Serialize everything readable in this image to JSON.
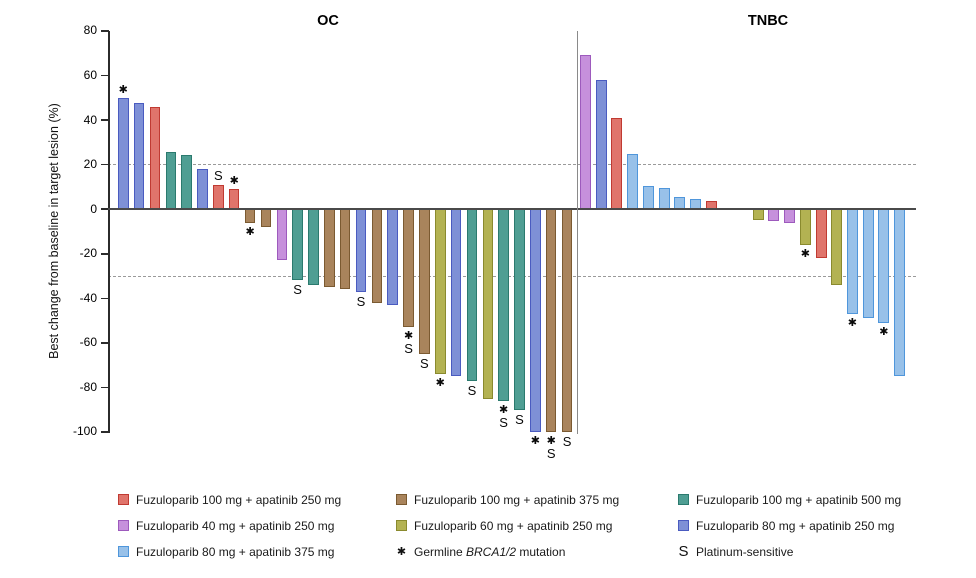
{
  "chart_data": {
    "type": "bar",
    "subtype": "waterfall",
    "ylabel": "Best change from baseline in target lesion (%)",
    "ylim": [
      -100,
      80
    ],
    "yticks": [
      80,
      60,
      40,
      20,
      0,
      -20,
      -40,
      -60,
      -80,
      -100
    ],
    "reference_lines": [
      20,
      -30
    ],
    "grid": "off",
    "legend_position": "bottom",
    "colors": {
      "red": {
        "fill": "#E0746B",
        "border": "#C03A32"
      },
      "brown": {
        "fill": "#A9845C",
        "border": "#7B5A31"
      },
      "teal": {
        "fill": "#4F9E93",
        "border": "#2B7A6E"
      },
      "orchid": {
        "fill": "#C690DC",
        "border": "#9D5ABD"
      },
      "yellow": {
        "fill": "#B3B252",
        "border": "#8A8A2E"
      },
      "blueviolet": {
        "fill": "#7E90D6",
        "border": "#4A5BC0"
      },
      "lightblue": {
        "fill": "#98C1E9",
        "border": "#4F96DB"
      }
    },
    "mark_meanings": {
      "*": "Germline BRCA1/2 mutation",
      "S": "Platinum-sensitive"
    },
    "panels": [
      {
        "name": "OC",
        "bars": [
          {
            "value": 50,
            "color": "blueviolet",
            "marks": "*"
          },
          {
            "value": 47.5,
            "color": "blueviolet",
            "marks": ""
          },
          {
            "value": 46,
            "color": "red",
            "marks": ""
          },
          {
            "value": 25.5,
            "color": "teal",
            "marks": ""
          },
          {
            "value": 24.5,
            "color": "teal",
            "marks": ""
          },
          {
            "value": 18,
            "color": "blueviolet",
            "marks": ""
          },
          {
            "value": 11,
            "color": "red",
            "marks": "S"
          },
          {
            "value": 9,
            "color": "red",
            "marks": "*"
          },
          {
            "value": -6,
            "color": "brown",
            "marks": "*"
          },
          {
            "value": -8,
            "color": "brown",
            "marks": ""
          },
          {
            "value": -23,
            "color": "orchid",
            "marks": ""
          },
          {
            "value": -32,
            "color": "teal",
            "marks": "S"
          },
          {
            "value": -34,
            "color": "teal",
            "marks": ""
          },
          {
            "value": -35,
            "color": "brown",
            "marks": ""
          },
          {
            "value": -36,
            "color": "brown",
            "marks": ""
          },
          {
            "value": -37,
            "color": "blueviolet",
            "marks": "S"
          },
          {
            "value": -42,
            "color": "brown",
            "marks": ""
          },
          {
            "value": -43,
            "color": "blueviolet",
            "marks": ""
          },
          {
            "value": -53,
            "color": "brown",
            "marks": "*S"
          },
          {
            "value": -65,
            "color": "brown",
            "marks": "S"
          },
          {
            "value": -74,
            "color": "yellow",
            "marks": "*"
          },
          {
            "value": -75,
            "color": "blueviolet",
            "marks": ""
          },
          {
            "value": -77,
            "color": "teal",
            "marks": "S"
          },
          {
            "value": -85,
            "color": "yellow",
            "marks": ""
          },
          {
            "value": -86,
            "color": "teal",
            "marks": "*S"
          },
          {
            "value": -90,
            "color": "teal",
            "marks": "S"
          },
          {
            "value": -100,
            "color": "blueviolet",
            "marks": "*"
          },
          {
            "value": -100,
            "color": "brown",
            "marks": "*S"
          },
          {
            "value": -100,
            "color": "brown",
            "marks": "S"
          }
        ]
      },
      {
        "name": "TNBC",
        "bars": [
          {
            "value": 69,
            "color": "orchid",
            "marks": ""
          },
          {
            "value": 58,
            "color": "blueviolet",
            "marks": ""
          },
          {
            "value": 41,
            "color": "red",
            "marks": ""
          },
          {
            "value": 25,
            "color": "lightblue",
            "marks": ""
          },
          {
            "value": 10.5,
            "color": "lightblue",
            "marks": ""
          },
          {
            "value": 9.5,
            "color": "lightblue",
            "marks": ""
          },
          {
            "value": 5.5,
            "color": "lightblue",
            "marks": ""
          },
          {
            "value": 4.5,
            "color": "lightblue",
            "marks": ""
          },
          {
            "value": 3.5,
            "color": "red",
            "marks": ""
          },
          {
            "value": -5,
            "color": "yellow",
            "marks": ""
          },
          {
            "value": -5.5,
            "color": "orchid",
            "marks": ""
          },
          {
            "value": -6,
            "color": "orchid",
            "marks": ""
          },
          {
            "value": -16,
            "color": "yellow",
            "marks": "*"
          },
          {
            "value": -22,
            "color": "red",
            "marks": ""
          },
          {
            "value": -34,
            "color": "yellow",
            "marks": ""
          },
          {
            "value": -47,
            "color": "lightblue",
            "marks": "*"
          },
          {
            "value": -49,
            "color": "lightblue",
            "marks": ""
          },
          {
            "value": -51,
            "color": "lightblue",
            "marks": "*"
          },
          {
            "value": -75,
            "color": "lightblue",
            "marks": ""
          }
        ]
      }
    ],
    "legend": {
      "columns": [
        [
          {
            "type": "swatch",
            "color": "red",
            "label": "Fuzuloparib 100 mg + apatinib 250 mg"
          },
          {
            "type": "swatch",
            "color": "orchid",
            "label": "Fuzuloparib 40 mg + apatinib 250 mg"
          },
          {
            "type": "swatch",
            "color": "lightblue",
            "label": "Fuzuloparib 80 mg + apatinib 375 mg"
          }
        ],
        [
          {
            "type": "swatch",
            "color": "brown",
            "label": "Fuzuloparib 100 mg + apatinib 375 mg"
          },
          {
            "type": "swatch",
            "color": "yellow",
            "label": "Fuzuloparib 60 mg + apatinib 250 mg"
          },
          {
            "type": "star-note",
            "prefix": "Germline ",
            "italic": "BRCA1/2",
            "suffix": " mutation"
          }
        ],
        [
          {
            "type": "swatch",
            "color": "teal",
            "label": "Fuzuloparib 100 mg + apatinib 500 mg"
          },
          {
            "type": "swatch",
            "color": "blueviolet",
            "label": "Fuzuloparib 80 mg + apatinib 250 mg"
          },
          {
            "type": "s-note",
            "label": "Platinum-sensitive"
          }
        ]
      ]
    }
  }
}
